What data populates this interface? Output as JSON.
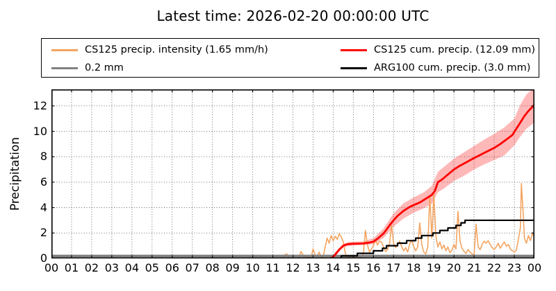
{
  "chart_data": {
    "type": "line",
    "title": "Latest time: 2026-02-20 00:00:00 UTC",
    "xlabel": "",
    "ylabel": "Precipitation",
    "xlim": [
      0,
      24
    ],
    "ylim": [
      0,
      13.3
    ],
    "grid": true,
    "legend_position": "upper center, 2 columns, framed",
    "x_tick_labels": [
      "00",
      "01",
      "02",
      "03",
      "04",
      "05",
      "06",
      "07",
      "08",
      "09",
      "10",
      "11",
      "12",
      "13",
      "14",
      "15",
      "16",
      "17",
      "18",
      "19",
      "20",
      "21",
      "22",
      "23",
      "00"
    ],
    "y_ticks": [
      0,
      2,
      4,
      6,
      8,
      10,
      12
    ],
    "y_tick_labels": [
      "0",
      "2",
      "4",
      "6",
      "8",
      "10",
      "12"
    ],
    "series": [
      {
        "key": "cs125-intensity",
        "name": "CS125 precip. intensity (1.65 mm/h)",
        "color": "#F4A460",
        "style": "line",
        "linewidth": 1.6,
        "points": [
          [
            0,
            0
          ],
          [
            8.9,
            0
          ],
          [
            9.0,
            0.07
          ],
          [
            9.1,
            0.03
          ],
          [
            9.3,
            0
          ],
          [
            9.9,
            0.05
          ],
          [
            10.1,
            0
          ],
          [
            11.5,
            0.02
          ],
          [
            11.6,
            0.3
          ],
          [
            11.7,
            0.35
          ],
          [
            11.8,
            0.04
          ],
          [
            12.3,
            0.04
          ],
          [
            12.4,
            0.55
          ],
          [
            12.5,
            0.28
          ],
          [
            12.6,
            0.05
          ],
          [
            12.9,
            0.08
          ],
          [
            13.0,
            0.75
          ],
          [
            13.1,
            0.3
          ],
          [
            13.2,
            0.15
          ],
          [
            13.3,
            0.5
          ],
          [
            13.4,
            0.12
          ],
          [
            13.5,
            0.1
          ],
          [
            13.6,
            0.9
          ],
          [
            13.7,
            1.6
          ],
          [
            13.8,
            1.2
          ],
          [
            13.9,
            1.8
          ],
          [
            14.0,
            1.4
          ],
          [
            14.1,
            1.75
          ],
          [
            14.2,
            1.5
          ],
          [
            14.3,
            1.95
          ],
          [
            14.4,
            1.7
          ],
          [
            14.5,
            1.3
          ],
          [
            14.6,
            0.4
          ],
          [
            14.7,
            0.12
          ],
          [
            14.8,
            0.07
          ],
          [
            14.9,
            0.05
          ],
          [
            15.0,
            0.04
          ],
          [
            15.1,
            0.05
          ],
          [
            15.2,
            0.05
          ],
          [
            15.3,
            0.07
          ],
          [
            15.4,
            0.12
          ],
          [
            15.5,
            0.4
          ],
          [
            15.6,
            2.2
          ],
          [
            15.7,
            1.1
          ],
          [
            15.8,
            0.5
          ],
          [
            15.9,
            0.75
          ],
          [
            16.0,
            1.0
          ],
          [
            16.1,
            1.5
          ],
          [
            16.2,
            1.05
          ],
          [
            16.3,
            1.35
          ],
          [
            16.4,
            1.3
          ],
          [
            16.5,
            0.9
          ],
          [
            16.6,
            0.55
          ],
          [
            16.7,
            0.7
          ],
          [
            16.8,
            1.15
          ],
          [
            16.9,
            2.6
          ],
          [
            17.0,
            1.2
          ],
          [
            17.1,
            0.85
          ],
          [
            17.2,
            1.1
          ],
          [
            17.3,
            1.35
          ],
          [
            17.4,
            0.95
          ],
          [
            17.5,
            0.6
          ],
          [
            17.6,
            0.85
          ],
          [
            17.7,
            0.5
          ],
          [
            17.8,
            1.15
          ],
          [
            17.9,
            1.4
          ],
          [
            18.0,
            0.95
          ],
          [
            18.1,
            0.6
          ],
          [
            18.2,
            0.9
          ],
          [
            18.3,
            2.8
          ],
          [
            18.4,
            1.1
          ],
          [
            18.5,
            0.5
          ],
          [
            18.6,
            0.35
          ],
          [
            18.7,
            0.9
          ],
          [
            18.8,
            4.9
          ],
          [
            18.9,
            1.6
          ],
          [
            19.0,
            5.05
          ],
          [
            19.1,
            1.8
          ],
          [
            19.2,
            0.9
          ],
          [
            19.3,
            1.3
          ],
          [
            19.4,
            0.75
          ],
          [
            19.5,
            1.05
          ],
          [
            19.6,
            0.6
          ],
          [
            19.7,
            0.9
          ],
          [
            19.8,
            0.45
          ],
          [
            19.9,
            0.65
          ],
          [
            20.0,
            1.1
          ],
          [
            20.1,
            0.75
          ],
          [
            20.2,
            3.7
          ],
          [
            20.3,
            1.4
          ],
          [
            20.4,
            0.8
          ],
          [
            20.5,
            0.55
          ],
          [
            20.6,
            0.4
          ],
          [
            20.7,
            0.7
          ],
          [
            20.8,
            0.5
          ],
          [
            20.9,
            0.35
          ],
          [
            21.0,
            0.25
          ],
          [
            21.1,
            2.7
          ],
          [
            21.2,
            0.9
          ],
          [
            21.3,
            0.7
          ],
          [
            21.4,
            1.1
          ],
          [
            21.5,
            1.35
          ],
          [
            21.6,
            1.2
          ],
          [
            21.7,
            1.4
          ],
          [
            21.8,
            1.1
          ],
          [
            21.9,
            0.85
          ],
          [
            22.0,
            0.7
          ],
          [
            22.1,
            0.9
          ],
          [
            22.2,
            1.2
          ],
          [
            22.3,
            0.8
          ],
          [
            22.4,
            1.05
          ],
          [
            22.5,
            1.3
          ],
          [
            22.6,
            0.95
          ],
          [
            22.7,
            1.1
          ],
          [
            22.8,
            0.75
          ],
          [
            22.9,
            0.6
          ],
          [
            23.0,
            0.5
          ],
          [
            23.1,
            0.65
          ],
          [
            23.2,
            1.5
          ],
          [
            23.3,
            2.4
          ],
          [
            23.35,
            5.9
          ],
          [
            23.45,
            3.3
          ],
          [
            23.5,
            1.6
          ],
          [
            23.6,
            1.2
          ],
          [
            23.7,
            1.8
          ],
          [
            23.8,
            1.4
          ],
          [
            23.9,
            2.0
          ],
          [
            24.0,
            1.65
          ]
        ]
      },
      {
        "key": "threshold",
        "name": "0.2 mm",
        "color": "#808080",
        "style": "line",
        "linewidth": 3.5,
        "points": [
          [
            0,
            0.2
          ],
          [
            24,
            0.2
          ]
        ]
      },
      {
        "key": "cs125-cum",
        "name": "CS125 cum. precip. (12.09 mm)",
        "color": "#FF0000",
        "style": "line",
        "linewidth": 2.8,
        "points": [
          [
            0,
            0
          ],
          [
            13.85,
            0
          ],
          [
            14.0,
            0.12
          ],
          [
            14.15,
            0.4
          ],
          [
            14.3,
            0.7
          ],
          [
            14.5,
            1.0
          ],
          [
            14.7,
            1.12
          ],
          [
            15.0,
            1.15
          ],
          [
            15.5,
            1.18
          ],
          [
            15.8,
            1.25
          ],
          [
            16.0,
            1.32
          ],
          [
            16.2,
            1.55
          ],
          [
            16.5,
            1.95
          ],
          [
            16.8,
            2.6
          ],
          [
            17.0,
            3.0
          ],
          [
            17.2,
            3.35
          ],
          [
            17.5,
            3.75
          ],
          [
            17.8,
            4.05
          ],
          [
            18.0,
            4.2
          ],
          [
            18.3,
            4.4
          ],
          [
            18.6,
            4.7
          ],
          [
            18.9,
            5.0
          ],
          [
            19.05,
            5.3
          ],
          [
            19.2,
            6.0
          ],
          [
            19.4,
            6.2
          ],
          [
            19.7,
            6.6
          ],
          [
            20.0,
            7.0
          ],
          [
            20.3,
            7.3
          ],
          [
            20.6,
            7.55
          ],
          [
            21.0,
            7.9
          ],
          [
            21.5,
            8.3
          ],
          [
            22.0,
            8.7
          ],
          [
            22.3,
            9.0
          ],
          [
            22.6,
            9.35
          ],
          [
            22.9,
            9.7
          ],
          [
            23.1,
            10.2
          ],
          [
            23.3,
            10.7
          ],
          [
            23.5,
            11.2
          ],
          [
            23.7,
            11.6
          ],
          [
            24.0,
            12.09
          ]
        ]
      },
      {
        "key": "arg100-cum",
        "name": "ARG100 cum. precip. (3.0 mm)",
        "color": "#000000",
        "style": "step",
        "linewidth": 2.2,
        "points": [
          [
            0,
            0
          ],
          [
            14.4,
            0.2
          ],
          [
            15.2,
            0.4
          ],
          [
            16.0,
            0.6
          ],
          [
            16.45,
            0.8
          ],
          [
            16.65,
            1.0
          ],
          [
            17.2,
            1.2
          ],
          [
            17.65,
            1.4
          ],
          [
            18.1,
            1.6
          ],
          [
            18.4,
            1.8
          ],
          [
            18.95,
            2.0
          ],
          [
            19.3,
            2.2
          ],
          [
            19.7,
            2.4
          ],
          [
            20.1,
            2.6
          ],
          [
            20.35,
            2.8
          ],
          [
            20.55,
            3.0
          ],
          [
            24.0,
            3.0
          ]
        ]
      }
    ],
    "band": {
      "for_series": "CS125 cum. precip. (12.09 mm)",
      "color": "#FF0000",
      "opacity": 0.28,
      "points": [
        [
          13.85,
          0,
          0.05
        ],
        [
          14.15,
          0.3,
          0.55
        ],
        [
          14.5,
          0.85,
          1.15
        ],
        [
          14.8,
          1.0,
          1.3
        ],
        [
          15.5,
          1.05,
          1.35
        ],
        [
          16.0,
          1.12,
          1.6
        ],
        [
          16.5,
          1.6,
          2.35
        ],
        [
          17.0,
          2.5,
          3.55
        ],
        [
          17.5,
          3.15,
          4.35
        ],
        [
          18.0,
          3.6,
          4.8
        ],
        [
          18.5,
          3.95,
          5.2
        ],
        [
          18.9,
          4.3,
          5.7
        ],
        [
          19.2,
          5.2,
          6.8
        ],
        [
          19.5,
          5.5,
          7.2
        ],
        [
          20.0,
          6.1,
          7.85
        ],
        [
          20.5,
          6.5,
          8.35
        ],
        [
          21.0,
          7.0,
          8.85
        ],
        [
          21.5,
          7.4,
          9.35
        ],
        [
          22.0,
          7.75,
          9.8
        ],
        [
          22.5,
          8.1,
          10.3
        ],
        [
          23.0,
          8.9,
          11.0
        ],
        [
          23.3,
          9.6,
          12.1
        ],
        [
          23.6,
          10.2,
          12.9
        ],
        [
          24.0,
          10.7,
          13.45
        ]
      ]
    }
  }
}
